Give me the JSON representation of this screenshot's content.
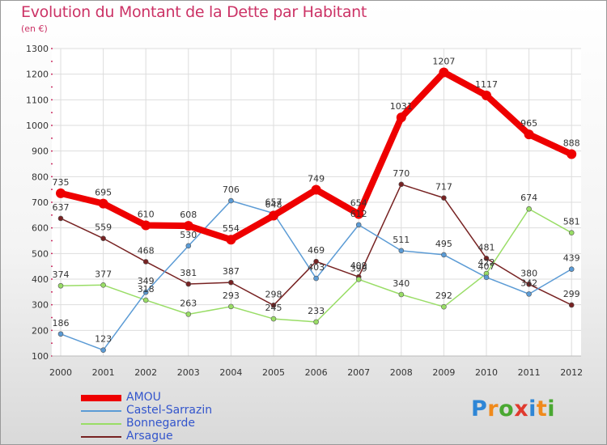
{
  "title": "Evolution du Montant de la Dette par Habitant",
  "unit_label": "(en €)",
  "logo": {
    "letters": [
      "P",
      "r",
      "o",
      "x",
      "i",
      "t",
      "i"
    ],
    "colors": [
      "#2e86d6",
      "#f08a1c",
      "#4aa832",
      "#e03a2e",
      "#2e86d6",
      "#f08a1c",
      "#4aa832"
    ]
  },
  "chart_data": {
    "type": "line",
    "x": [
      "2000",
      "2001",
      "2002",
      "2003",
      "2004",
      "2005",
      "2006",
      "2007",
      "2008",
      "2009",
      "2010",
      "2011",
      "2012"
    ],
    "yticks": [
      "100",
      "200",
      "300",
      "400",
      "500",
      "600",
      "700",
      "800",
      "900",
      "1000",
      "1100",
      "1200",
      "1300"
    ],
    "ylim": [
      100,
      1300
    ],
    "grid": true,
    "legend_position": "bottom-left",
    "series": [
      {
        "name": "AMOU",
        "color": "#ee0000",
        "values": [
          735,
          695,
          610,
          608,
          554,
          648,
          749,
          654,
          1031,
          1207,
          1117,
          965,
          888
        ],
        "labels": [
          "735",
          "695",
          "610",
          "608",
          "554",
          "648",
          "749",
          "654",
          "1031",
          "1207",
          "1117",
          "965",
          "888"
        ]
      },
      {
        "name": "Castel-Sarrazin",
        "color": "#5b9bd5",
        "values": [
          186,
          123,
          349,
          530,
          706,
          657,
          403,
          612,
          511,
          495,
          407,
          342,
          439
        ],
        "labels": [
          "186",
          "123",
          "349",
          "530",
          "706",
          "657",
          "403",
          "612",
          "511",
          "495",
          "407",
          "342",
          "439"
        ]
      },
      {
        "name": "Bonnegarde",
        "color": "#99dd66",
        "values": [
          374,
          377,
          318,
          263,
          293,
          245,
          233,
          399,
          340,
          292,
          422,
          674,
          581
        ],
        "labels": [
          "374",
          "377",
          "318",
          "263",
          "293",
          "245",
          "233",
          "399",
          "340",
          "292",
          "422",
          "674",
          "581"
        ]
      },
      {
        "name": "Arsague",
        "color": "#772222",
        "values": [
          637,
          559,
          468,
          381,
          387,
          298,
          469,
          409,
          770,
          717,
          481,
          380,
          299
        ],
        "labels": [
          "637",
          "559",
          "468",
          "381",
          "387",
          "298",
          "469",
          "409",
          "770",
          "717",
          "481",
          "380",
          "299"
        ]
      }
    ]
  }
}
